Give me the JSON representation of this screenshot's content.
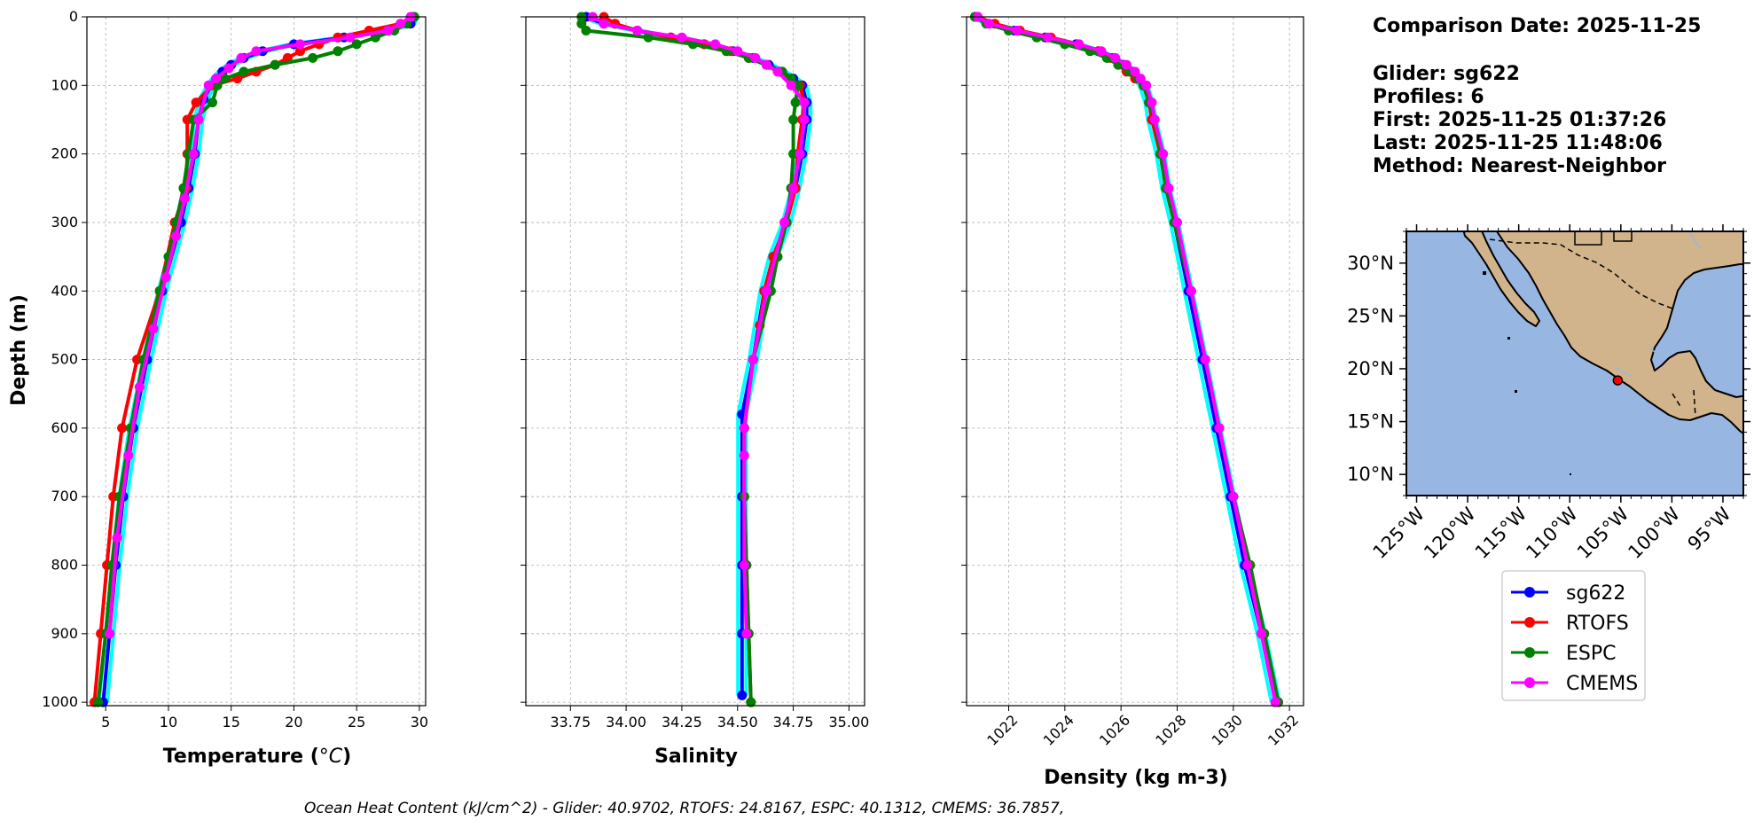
{
  "info": {
    "comparison_date": "Comparison Date: 2025-11-25",
    "glider": "Glider: sg622",
    "profiles": "Profiles: 6",
    "first": "First: 2025-11-25 01:37:26",
    "last": "Last: 2025-11-25 11:48:06",
    "method": "Method: Nearest-Neighbor"
  },
  "footer": "Ocean Heat Content (kJ/cm^2) - Glider: 40.9702,  RTOFS: 24.8167,  ESPC: 40.1312,  CMEMS: 36.7857,",
  "colors": {
    "sg622": "#0000ff",
    "sg622_individual": "#00ffff",
    "RTOFS": "#ff0000",
    "ESPC": "#008000",
    "CMEMS": "#ff00ff",
    "ocean": "#97b6e1",
    "land": "#d2b48c",
    "grid": "#b0b0b0"
  },
  "legend": [
    {
      "label": "sg622",
      "color": "#0000ff"
    },
    {
      "label": "RTOFS",
      "color": "#ff0000"
    },
    {
      "label": "ESPC",
      "color": "#008000"
    },
    {
      "label": "CMEMS",
      "color": "#ff00ff"
    }
  ],
  "map": {
    "lat_ticks": [
      "30°N",
      "25°N",
      "20°N",
      "15°N",
      "10°N"
    ],
    "lon_ticks": [
      "125°W",
      "120°W",
      "115°W",
      "110°W",
      "105°W",
      "100°W",
      "95°W"
    ],
    "extent": {
      "lon_min": -126,
      "lon_max": -93,
      "lat_min": 8,
      "lat_max": 33
    },
    "glider_location": {
      "lon": -105.3,
      "lat": 18.9
    }
  },
  "chart_data": [
    {
      "type": "line",
      "id": "temperature",
      "xlabel": "Temperature (°C)",
      "ylabel": "Depth (m)",
      "xlim": [
        3.5,
        30.5
      ],
      "ylim": [
        1005,
        0
      ],
      "xticks": [
        5,
        10,
        15,
        20,
        25,
        30
      ],
      "yticks": [
        0,
        100,
        200,
        300,
        400,
        500,
        600,
        700,
        800,
        900,
        1000
      ],
      "grid": true,
      "series": [
        {
          "name": "sg622",
          "depth": [
            0,
            10,
            20,
            30,
            40,
            50,
            60,
            70,
            80,
            90,
            100,
            120,
            150,
            200,
            250,
            300,
            400,
            500,
            600,
            700,
            800,
            900,
            1000
          ],
          "values": [
            29.5,
            29.3,
            27.5,
            24,
            20,
            17.5,
            16,
            15,
            14.3,
            13.8,
            13.4,
            12.8,
            12.4,
            12.1,
            11.6,
            11,
            9.5,
            8.3,
            7.2,
            6.4,
            5.8,
            5.3,
            4.8
          ]
        },
        {
          "name": "RTOFS",
          "depth": [
            0,
            10,
            20,
            30,
            40,
            50,
            60,
            70,
            80,
            90,
            100,
            125,
            150,
            200,
            250,
            300,
            400,
            500,
            600,
            700,
            800,
            900,
            1000
          ],
          "values": [
            29.5,
            28.5,
            26,
            23.5,
            22,
            20.5,
            19.5,
            18.5,
            17,
            15.5,
            13.5,
            12.2,
            11.5,
            11.5,
            11.4,
            10.5,
            9.3,
            7.5,
            6.3,
            5.6,
            5.1,
            4.6,
            4.1
          ]
        },
        {
          "name": "ESPC",
          "depth": [
            0,
            10,
            20,
            30,
            40,
            50,
            60,
            70,
            80,
            90,
            100,
            125,
            150,
            200,
            250,
            300,
            350,
            400,
            500,
            600,
            700,
            800,
            900,
            1000
          ],
          "values": [
            29.6,
            29,
            28,
            26.5,
            25,
            23.5,
            21.5,
            18.5,
            16,
            14.5,
            13.9,
            13.5,
            12,
            11.6,
            11.2,
            10.6,
            10,
            9.3,
            8,
            7,
            6.1,
            5.5,
            5,
            4.4
          ]
        },
        {
          "name": "CMEMS",
          "depth": [
            0,
            10,
            20,
            30,
            40,
            50,
            60,
            75,
            90,
            100,
            150,
            200,
            265,
            320,
            380,
            455,
            540,
            640,
            760,
            900
          ],
          "values": [
            29.3,
            28.5,
            27.5,
            24.5,
            20.5,
            17,
            15.8,
            14.8,
            13.8,
            13.2,
            12.4,
            12,
            11.3,
            10.6,
            9.8,
            8.8,
            7.7,
            6.8,
            5.9,
            5.3
          ]
        }
      ]
    },
    {
      "type": "line",
      "id": "salinity",
      "xlabel": "Salinity",
      "ylabel": "",
      "xlim": [
        33.55,
        35.07
      ],
      "ylim": [
        1005,
        0
      ],
      "xticks": [
        33.75,
        34.0,
        34.25,
        34.5,
        34.75,
        35.0
      ],
      "xtick_labels": [
        "33.75",
        "34.00",
        "34.25",
        "34.50",
        "34.75",
        "35.00"
      ],
      "yticks": [
        0,
        100,
        200,
        300,
        400,
        500,
        600,
        700,
        800,
        900,
        1000
      ],
      "grid": true,
      "series": [
        {
          "name": "sg622",
          "depth": [
            0,
            10,
            20,
            30,
            40,
            50,
            60,
            70,
            80,
            90,
            100,
            125,
            150,
            200,
            250,
            300,
            350,
            400,
            500,
            580,
            700,
            800,
            900,
            990
          ],
          "values": [
            33.82,
            33.9,
            34.05,
            34.2,
            34.35,
            34.48,
            34.57,
            34.64,
            34.7,
            34.75,
            34.79,
            34.81,
            34.81,
            34.79,
            34.76,
            34.72,
            34.66,
            34.62,
            34.57,
            34.52,
            34.52,
            34.52,
            34.52,
            34.52
          ]
        },
        {
          "name": "RTOFS",
          "depth": [
            0,
            10,
            20,
            30,
            40,
            50,
            60,
            70,
            80,
            90,
            100,
            125,
            150,
            200,
            250,
            300,
            350,
            400,
            450,
            500,
            600,
            700,
            800,
            900,
            1000
          ],
          "values": [
            33.9,
            33.95,
            34.05,
            34.2,
            34.35,
            34.47,
            34.55,
            34.63,
            34.69,
            34.74,
            34.78,
            34.8,
            34.79,
            34.77,
            34.76,
            34.72,
            34.66,
            34.62,
            34.6,
            34.57,
            34.53,
            34.53,
            34.54,
            34.55,
            34.56
          ]
        },
        {
          "name": "ESPC",
          "depth": [
            0,
            10,
            20,
            30,
            40,
            50,
            60,
            70,
            80,
            90,
            100,
            125,
            150,
            200,
            250,
            300,
            350,
            400,
            500,
            600,
            700,
            800,
            900,
            1000
          ],
          "values": [
            33.8,
            33.8,
            33.82,
            34.1,
            34.3,
            34.45,
            34.55,
            34.63,
            34.7,
            34.74,
            34.77,
            34.76,
            34.75,
            34.75,
            34.74,
            34.72,
            34.68,
            34.65,
            34.57,
            34.53,
            34.53,
            34.54,
            34.55,
            34.56
          ]
        },
        {
          "name": "CMEMS",
          "depth": [
            0,
            10,
            20,
            30,
            40,
            50,
            60,
            70,
            80,
            100,
            125,
            150,
            200,
            250,
            300,
            400,
            500,
            600,
            640,
            800,
            900
          ],
          "values": [
            33.85,
            33.9,
            34.05,
            34.25,
            34.4,
            34.5,
            34.58,
            34.63,
            34.68,
            34.74,
            34.8,
            34.8,
            34.78,
            34.75,
            34.71,
            34.63,
            34.57,
            34.53,
            34.53,
            34.53,
            34.54
          ]
        }
      ]
    },
    {
      "type": "line",
      "id": "density",
      "xlabel": "Density (kg m-3)",
      "ylabel": "",
      "xlim": [
        1020.5,
        1032.5
      ],
      "ylim": [
        1005,
        0
      ],
      "xticks": [
        1022,
        1024,
        1026,
        1028,
        1030,
        1032
      ],
      "yticks": [
        0,
        100,
        200,
        300,
        400,
        500,
        600,
        700,
        800,
        900,
        1000
      ],
      "grid": true,
      "series": [
        {
          "name": "sg622",
          "depth": [
            0,
            10,
            20,
            30,
            40,
            50,
            60,
            70,
            80,
            90,
            100,
            125,
            150,
            200,
            250,
            300,
            400,
            500,
            600,
            700,
            800,
            900,
            1000
          ],
          "values": [
            1020.8,
            1021.3,
            1022.2,
            1023.3,
            1024.4,
            1025.2,
            1025.7,
            1026.1,
            1026.4,
            1026.6,
            1026.8,
            1027.0,
            1027.1,
            1027.4,
            1027.6,
            1027.9,
            1028.4,
            1028.9,
            1029.4,
            1029.9,
            1030.4,
            1031.0,
            1031.5
          ]
        },
        {
          "name": "RTOFS",
          "depth": [
            0,
            10,
            20,
            30,
            40,
            50,
            60,
            70,
            80,
            90,
            100,
            125,
            150,
            200,
            250,
            300,
            400,
            500,
            600,
            700,
            800,
            900,
            1000
          ],
          "values": [
            1020.9,
            1021.5,
            1022.4,
            1023.5,
            1024.5,
            1025.2,
            1025.6,
            1025.9,
            1026.2,
            1026.5,
            1026.8,
            1027.0,
            1027.1,
            1027.4,
            1027.6,
            1027.9,
            1028.5,
            1029.0,
            1029.5,
            1030.0,
            1030.6,
            1031.1,
            1031.6
          ]
        },
        {
          "name": "ESPC",
          "depth": [
            0,
            10,
            20,
            30,
            40,
            50,
            60,
            70,
            80,
            90,
            100,
            125,
            150,
            200,
            250,
            300,
            400,
            500,
            600,
            700,
            800,
            900,
            1000
          ],
          "values": [
            1020.8,
            1021.2,
            1022.0,
            1023.0,
            1024.0,
            1024.9,
            1025.5,
            1025.9,
            1026.3,
            1026.6,
            1026.8,
            1027.0,
            1027.2,
            1027.4,
            1027.6,
            1027.9,
            1028.5,
            1029.0,
            1029.5,
            1030.0,
            1030.6,
            1031.1,
            1031.6
          ]
        },
        {
          "name": "CMEMS",
          "depth": [
            0,
            10,
            20,
            30,
            40,
            50,
            60,
            70,
            80,
            90,
            100,
            125,
            150,
            200,
            250,
            300,
            400,
            500,
            600,
            700,
            800,
            900,
            1000
          ],
          "values": [
            1020.9,
            1021.3,
            1022.3,
            1023.4,
            1024.5,
            1025.3,
            1025.8,
            1026.2,
            1026.5,
            1026.7,
            1026.9,
            1027.1,
            1027.2,
            1027.5,
            1027.7,
            1028.0,
            1028.5,
            1029.0,
            1029.5,
            1030.0,
            1030.5,
            1031.0,
            1031.5
          ]
        }
      ]
    }
  ]
}
